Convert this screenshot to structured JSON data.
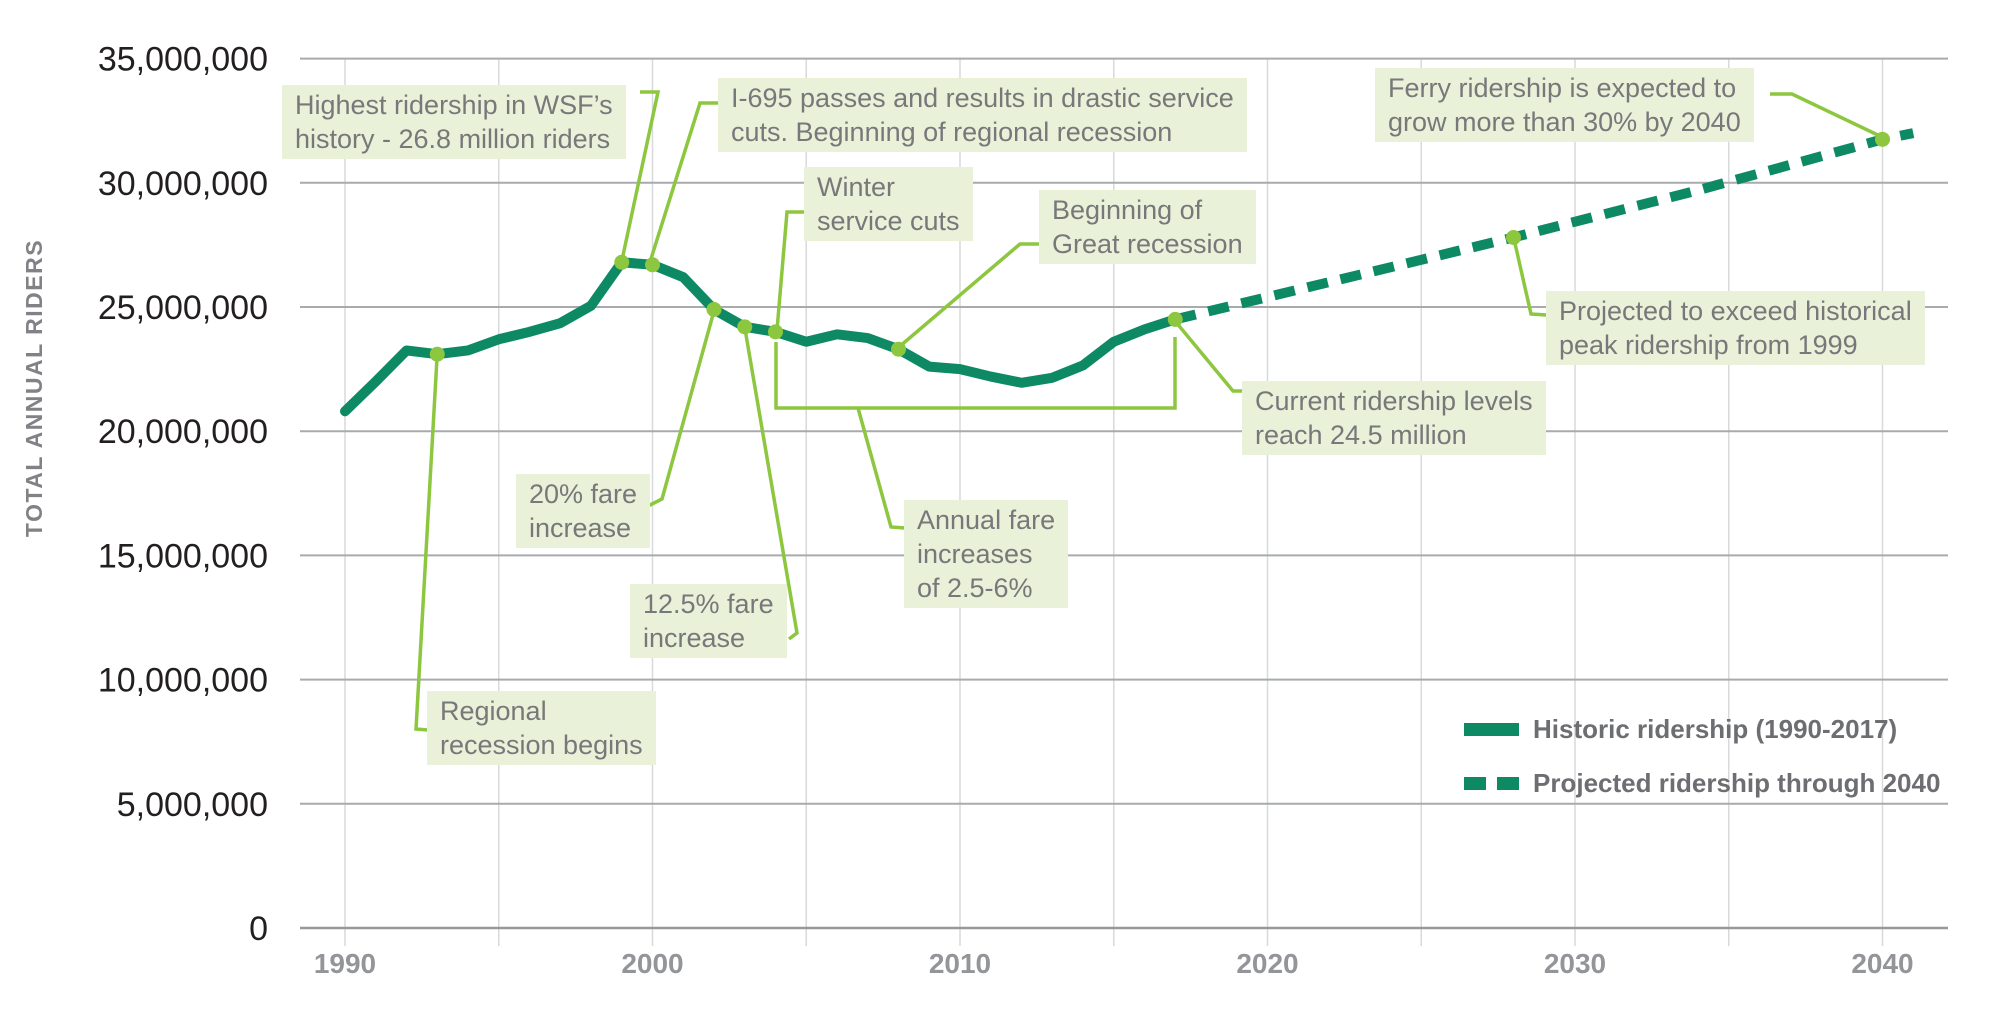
{
  "chart": {
    "y_axis_title": "TOTAL ANNUAL RIDERS",
    "y_ticks": [
      {
        "value": 35000000,
        "label": "35,000,000"
      },
      {
        "value": 30000000,
        "label": "30,000,000"
      },
      {
        "value": 25000000,
        "label": "25,000,000"
      },
      {
        "value": 20000000,
        "label": "20,000,000"
      },
      {
        "value": 15000000,
        "label": "15,000,000"
      },
      {
        "value": 10000000,
        "label": "10,000,000"
      },
      {
        "value": 5000000,
        "label": "5,000,000"
      },
      {
        "value": 0,
        "label": "0"
      }
    ],
    "x_ticks": [
      {
        "year": 1990,
        "label": "1990"
      },
      {
        "year": 2000,
        "label": "2000"
      },
      {
        "year": 2010,
        "label": "2010"
      },
      {
        "year": 2020,
        "label": "2020"
      },
      {
        "year": 2030,
        "label": "2030"
      },
      {
        "year": 2040,
        "label": "2040"
      }
    ]
  },
  "chart_data": {
    "type": "line",
    "title": "",
    "xlabel": "",
    "ylabel": "TOTAL ANNUAL RIDERS",
    "ylim": [
      0,
      35000000
    ],
    "xlim": [
      1990,
      2041
    ],
    "grid": true,
    "legend_position": "lower right",
    "series": [
      {
        "name": "Historic ridership (1990-2017)",
        "style": "solid",
        "x": [
          1990,
          1991,
          1992,
          1993,
          1994,
          1995,
          1996,
          1997,
          1998,
          1999,
          2000,
          2001,
          2002,
          2003,
          2004,
          2005,
          2006,
          2007,
          2008,
          2009,
          2010,
          2011,
          2012,
          2013,
          2014,
          2015,
          2016,
          2017
        ],
        "values": [
          20800000,
          22000000,
          23250000,
          23100000,
          23250000,
          23700000,
          24000000,
          24350000,
          25050000,
          26800000,
          26700000,
          26200000,
          24900000,
          24200000,
          24000000,
          23600000,
          23900000,
          23750000,
          23300000,
          22600000,
          22500000,
          22200000,
          21950000,
          22150000,
          22650000,
          23600000,
          24100000,
          24500000
        ]
      },
      {
        "name": "Projected ridership through 2040",
        "style": "dashed",
        "x": [
          2017,
          2022,
          2028,
          2034,
          2040,
          2041
        ],
        "values": [
          24500000,
          26000000,
          27800000,
          29700000,
          31750000,
          32000000
        ]
      }
    ],
    "markers": [
      {
        "year": 1993,
        "value": 23100000,
        "label": "Regional recession begins"
      },
      {
        "year": 1999,
        "value": 26800000,
        "label": "Highest ridership in WSF's history - 26.8 million riders"
      },
      {
        "year": 2000,
        "value": 26700000,
        "label": "I-695 passes and results in drastic service cuts. Beginning of regional recession"
      },
      {
        "year": 2002,
        "value": 24900000,
        "label": "20% fare increase"
      },
      {
        "year": 2003,
        "value": 24200000,
        "label": "12.5% fare increase"
      },
      {
        "year": 2004,
        "value": 24000000,
        "label": "Winter service cuts"
      },
      {
        "year": 2008,
        "value": 23300000,
        "label": "Beginning of Great recession"
      },
      {
        "year": 2017,
        "value": 24500000,
        "label": "Current ridership levels reach 24.5 million"
      },
      {
        "year": 2028,
        "value": 27800000,
        "label": "Projected to exceed historical peak ridership from 1999"
      },
      {
        "year": 2040,
        "value": 31750000,
        "label": "Ferry ridership is expected to grow more than 30% by 2040"
      }
    ]
  },
  "annotations": [
    {
      "id": "highest",
      "lines": [
        "Highest ridership in WSF’s",
        "history - 26.8 million riders"
      ]
    },
    {
      "id": "i695",
      "lines": [
        "I-695 passes and results in drastic service",
        "cuts. Beginning of regional recession"
      ]
    },
    {
      "id": "winter",
      "lines": [
        "Winter",
        "service cuts"
      ]
    },
    {
      "id": "great",
      "lines": [
        "Beginning of",
        "Great recession"
      ]
    },
    {
      "id": "ferry",
      "lines": [
        "Ferry ridership is expected to",
        "grow more than 30% by 2040"
      ]
    },
    {
      "id": "exceed",
      "lines": [
        "Projected to exceed historical",
        "peak ridership from 1999"
      ]
    },
    {
      "id": "current",
      "lines": [
        "Current ridership levels",
        "reach 24.5 million"
      ]
    },
    {
      "id": "fare20",
      "lines": [
        "20% fare",
        "increase"
      ]
    },
    {
      "id": "fare125",
      "lines": [
        "12.5% fare",
        "increase"
      ]
    },
    {
      "id": "annual",
      "lines": [
        "Annual fare",
        "increases",
        "of 2.5-6%"
      ]
    },
    {
      "id": "regional",
      "lines": [
        "Regional",
        "recession begins"
      ]
    }
  ],
  "legend": {
    "items": [
      {
        "label": "Historic ridership (1990-2017)",
        "style": "solid"
      },
      {
        "label": "Projected ridership through 2040",
        "style": "dashed"
      }
    ]
  },
  "colors": {
    "line_teal": "#0d8a64",
    "annotation_green": "#8dc63f",
    "annotation_bg": "#e9f1d9",
    "annotation_text": "#77787a",
    "y_tick_text": "#231f20",
    "x_tick_text": "#939598",
    "legend_text": "#6d6e71",
    "grid_horizontal": "#a8aaad",
    "grid_vertical": "#d8d9da",
    "axis_baseline": "#96989b"
  }
}
